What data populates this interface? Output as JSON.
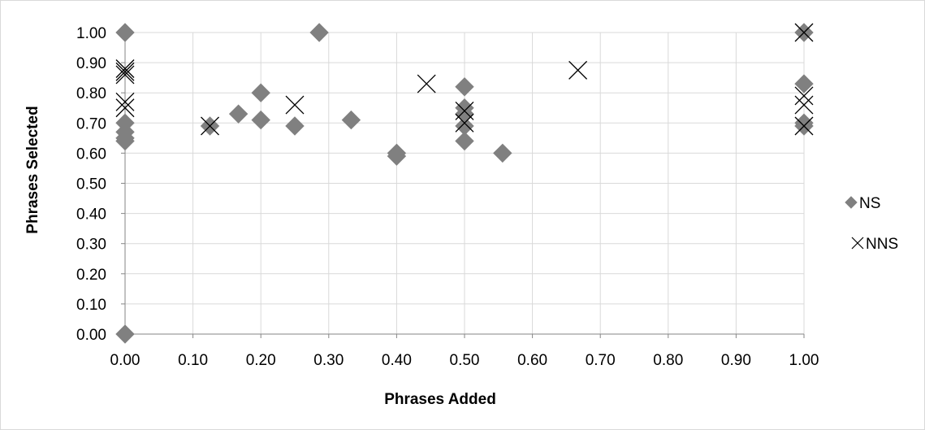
{
  "chart_data": {
    "type": "scatter",
    "title": "",
    "xlabel": "Phrases Added",
    "ylabel": "Phrases Selected",
    "xlim": [
      0,
      1
    ],
    "ylim": [
      0,
      1
    ],
    "x_ticks": [
      "0.00",
      "0.10",
      "0.20",
      "0.30",
      "0.40",
      "0.50",
      "0.60",
      "0.70",
      "0.80",
      "0.90",
      "1.00"
    ],
    "y_ticks": [
      "0.00",
      "0.10",
      "0.20",
      "0.30",
      "0.40",
      "0.50",
      "0.60",
      "0.70",
      "0.80",
      "0.90",
      "1.00"
    ],
    "grid": true,
    "legend_position": "right",
    "series": [
      {
        "name": "NS",
        "marker": "diamond",
        "color": "#808080",
        "points": [
          [
            0.0,
            1.0
          ],
          [
            0.0,
            0.7
          ],
          [
            0.0,
            0.67
          ],
          [
            0.0,
            0.65
          ],
          [
            0.0,
            0.64
          ],
          [
            0.0,
            0.0
          ],
          [
            0.125,
            0.69
          ],
          [
            0.167,
            0.73
          ],
          [
            0.2,
            0.8
          ],
          [
            0.2,
            0.71
          ],
          [
            0.25,
            0.69
          ],
          [
            0.286,
            1.0
          ],
          [
            0.333,
            0.71
          ],
          [
            0.4,
            0.6
          ],
          [
            0.4,
            0.59
          ],
          [
            0.5,
            0.82
          ],
          [
            0.5,
            0.75
          ],
          [
            0.5,
            0.73
          ],
          [
            0.5,
            0.69
          ],
          [
            0.5,
            0.64
          ],
          [
            0.556,
            0.6
          ],
          [
            1.0,
            1.0
          ],
          [
            1.0,
            0.83
          ],
          [
            1.0,
            0.7
          ],
          [
            1.0,
            0.69
          ]
        ]
      },
      {
        "name": "NNS",
        "marker": "x",
        "color": "#000000",
        "points": [
          [
            0.0,
            0.88
          ],
          [
            0.0,
            0.87
          ],
          [
            0.0,
            0.86
          ],
          [
            0.0,
            0.77
          ],
          [
            0.0,
            0.75
          ],
          [
            0.125,
            0.69
          ],
          [
            0.25,
            0.76
          ],
          [
            0.444,
            0.83
          ],
          [
            0.5,
            0.74
          ],
          [
            0.5,
            0.7
          ],
          [
            0.667,
            0.875
          ],
          [
            1.0,
            1.0
          ],
          [
            1.0,
            0.79
          ],
          [
            1.0,
            0.76
          ],
          [
            1.0,
            0.69
          ]
        ]
      }
    ]
  }
}
